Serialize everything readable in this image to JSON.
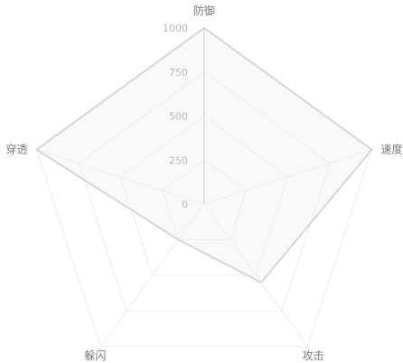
{
  "chart_data": {
    "type": "radar",
    "title": "",
    "max": 1000,
    "ticks": [
      0,
      250,
      500,
      750,
      1000
    ],
    "indicators": [
      "防御",
      "速度",
      "攻击",
      "躲闪",
      "穿透"
    ],
    "series": [
      {
        "values": [
          1000,
          1000,
          550,
          250,
          1000
        ]
      }
    ],
    "grid": true,
    "legend": "none",
    "colors": {
      "line": "#d6d6d6",
      "area": "#eeeeee",
      "grid": "#ededed",
      "label": "#777777",
      "tick": "#b8b8b8"
    }
  }
}
